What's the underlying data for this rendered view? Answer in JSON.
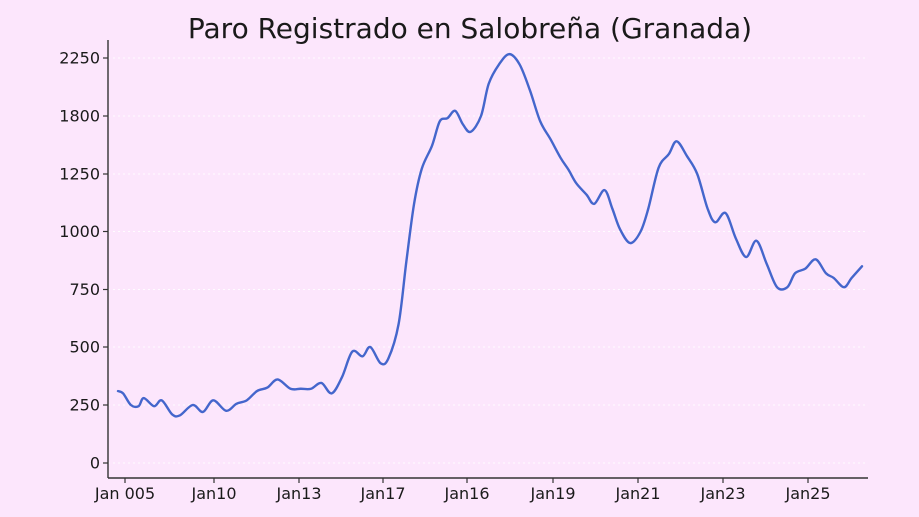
{
  "chart_data": {
    "type": "line",
    "title": "Paro Registrado en Salobreña (Granada)",
    "xlabel": "",
    "ylabel": "",
    "ylim": [
      -70,
      2350
    ],
    "yticks": [
      0,
      250,
      500,
      750,
      1000,
      1250,
      1800,
      2250
    ],
    "xtick_labels": [
      "Jan 005",
      "Jan10",
      "Jan13",
      "Jan17",
      "Jan16",
      "Jan19",
      "Jan21",
      "Jan23",
      "Jan25"
    ],
    "grid": true,
    "color": "#4466cc",
    "series": [
      {
        "x": [
          2004.8,
          2005.0,
          2005.3,
          2005.6,
          2005.8,
          2006.2,
          2006.5,
          2006.9,
          2007.2,
          2007.7,
          2008.1,
          2008.5,
          2009.0,
          2009.4,
          2009.8,
          2010.2,
          2010.6,
          2011.0,
          2011.5,
          2011.9,
          2012.3,
          2012.7,
          2013.1,
          2013.5,
          2013.9,
          2014.3,
          2014.6,
          2015.0,
          2015.3,
          2015.7,
          2016.0,
          2016.3,
          2016.6,
          2017.0,
          2017.3,
          2017.6,
          2017.9,
          2018.2,
          2018.5,
          2018.9,
          2019.2,
          2019.6,
          2020.0,
          2020.4,
          2020.8,
          2021.2,
          2021.6,
          2022.0,
          2022.3,
          2022.6,
          2023.0,
          2023.3,
          2023.7,
          2024.0,
          2024.3,
          2024.7,
          2025.1,
          2025.4,
          2025.8,
          2026.2,
          2026.5,
          2026.9,
          2027.3,
          2027.7,
          2028.0,
          2028.4,
          2028.8,
          2029.2,
          2029.6,
          2030.0,
          2030.4,
          2030.8,
          2031.1,
          2031.5,
          2031.9,
          2032.3,
          2032.6,
          2033.0,
          2033.3,
          2033.7
        ],
        "y": [
          310,
          300,
          250,
          245,
          280,
          245,
          270,
          210,
          205,
          250,
          220,
          270,
          225,
          255,
          270,
          310,
          325,
          360,
          320,
          320,
          320,
          345,
          300,
          370,
          480,
          460,
          500,
          430,
          450,
          600,
          870,
          1120,
          1300,
          1520,
          1750,
          1780,
          1840,
          1720,
          1650,
          1800,
          2050,
          2200,
          2280,
          2200,
          2000,
          1750,
          1580,
          1400,
          1290,
          1210,
          1160,
          1120,
          1180,
          1100,
          1010,
          950,
          1000,
          1100,
          1310,
          1440,
          1560,
          1420,
          1250,
          1100,
          1040,
          1080,
          970,
          890,
          960,
          860,
          760,
          760,
          820,
          840,
          880,
          820,
          800,
          760,
          800,
          850
        ]
      }
    ]
  }
}
